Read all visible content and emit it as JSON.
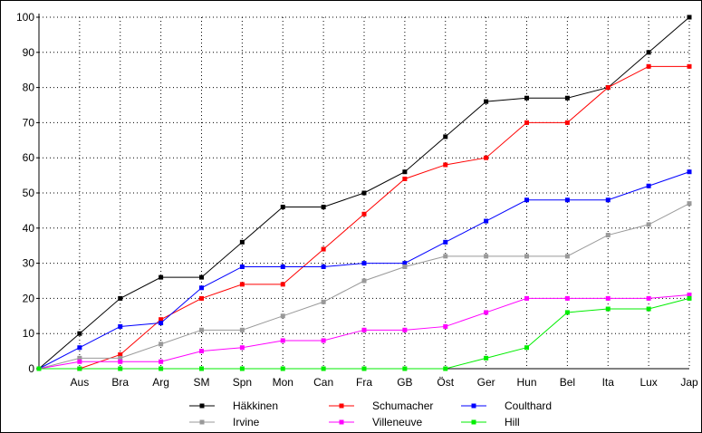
{
  "chart_data": {
    "type": "line",
    "title": "",
    "xlabel": "",
    "ylabel": "",
    "categories": [
      "",
      "Aus",
      "Bra",
      "Arg",
      "SM",
      "Spn",
      "Mon",
      "Can",
      "Fra",
      "GB",
      "Öst",
      "Ger",
      "Hun",
      "Bel",
      "Ita",
      "Lux",
      "Jap"
    ],
    "ylim": [
      0,
      100
    ],
    "yticks": [
      0,
      10,
      20,
      30,
      40,
      50,
      60,
      70,
      80,
      90,
      100
    ],
    "grid": true,
    "legend_position": "bottom",
    "series": [
      {
        "name": "Häkkinen",
        "color": "#000000",
        "values": [
          0,
          10,
          20,
          26,
          26,
          36,
          46,
          46,
          50,
          56,
          66,
          76,
          77,
          77,
          80,
          90,
          100
        ]
      },
      {
        "name": "Schumacher",
        "color": "#ff0000",
        "values": [
          0,
          0,
          4,
          14,
          20,
          24,
          24,
          34,
          44,
          54,
          58,
          60,
          70,
          70,
          80,
          86,
          86
        ]
      },
      {
        "name": "Coulthard",
        "color": "#0000ff",
        "values": [
          0,
          6,
          12,
          13,
          23,
          29,
          29,
          29,
          30,
          30,
          36,
          42,
          48,
          48,
          48,
          52,
          56
        ]
      },
      {
        "name": "Irvine",
        "color": "#999999",
        "values": [
          0,
          3,
          3,
          7,
          11,
          11,
          15,
          19,
          25,
          29,
          32,
          32,
          32,
          32,
          38,
          41,
          47
        ]
      },
      {
        "name": "Villeneuve",
        "color": "#ff00ff",
        "values": [
          0,
          2,
          2,
          2,
          5,
          6,
          8,
          8,
          11,
          11,
          12,
          16,
          20,
          20,
          20,
          20,
          21
        ]
      },
      {
        "name": "Hill",
        "color": "#00ee00",
        "values": [
          0,
          0,
          0,
          0,
          0,
          0,
          0,
          0,
          0,
          0,
          0,
          3,
          6,
          16,
          17,
          17,
          20
        ]
      }
    ]
  }
}
